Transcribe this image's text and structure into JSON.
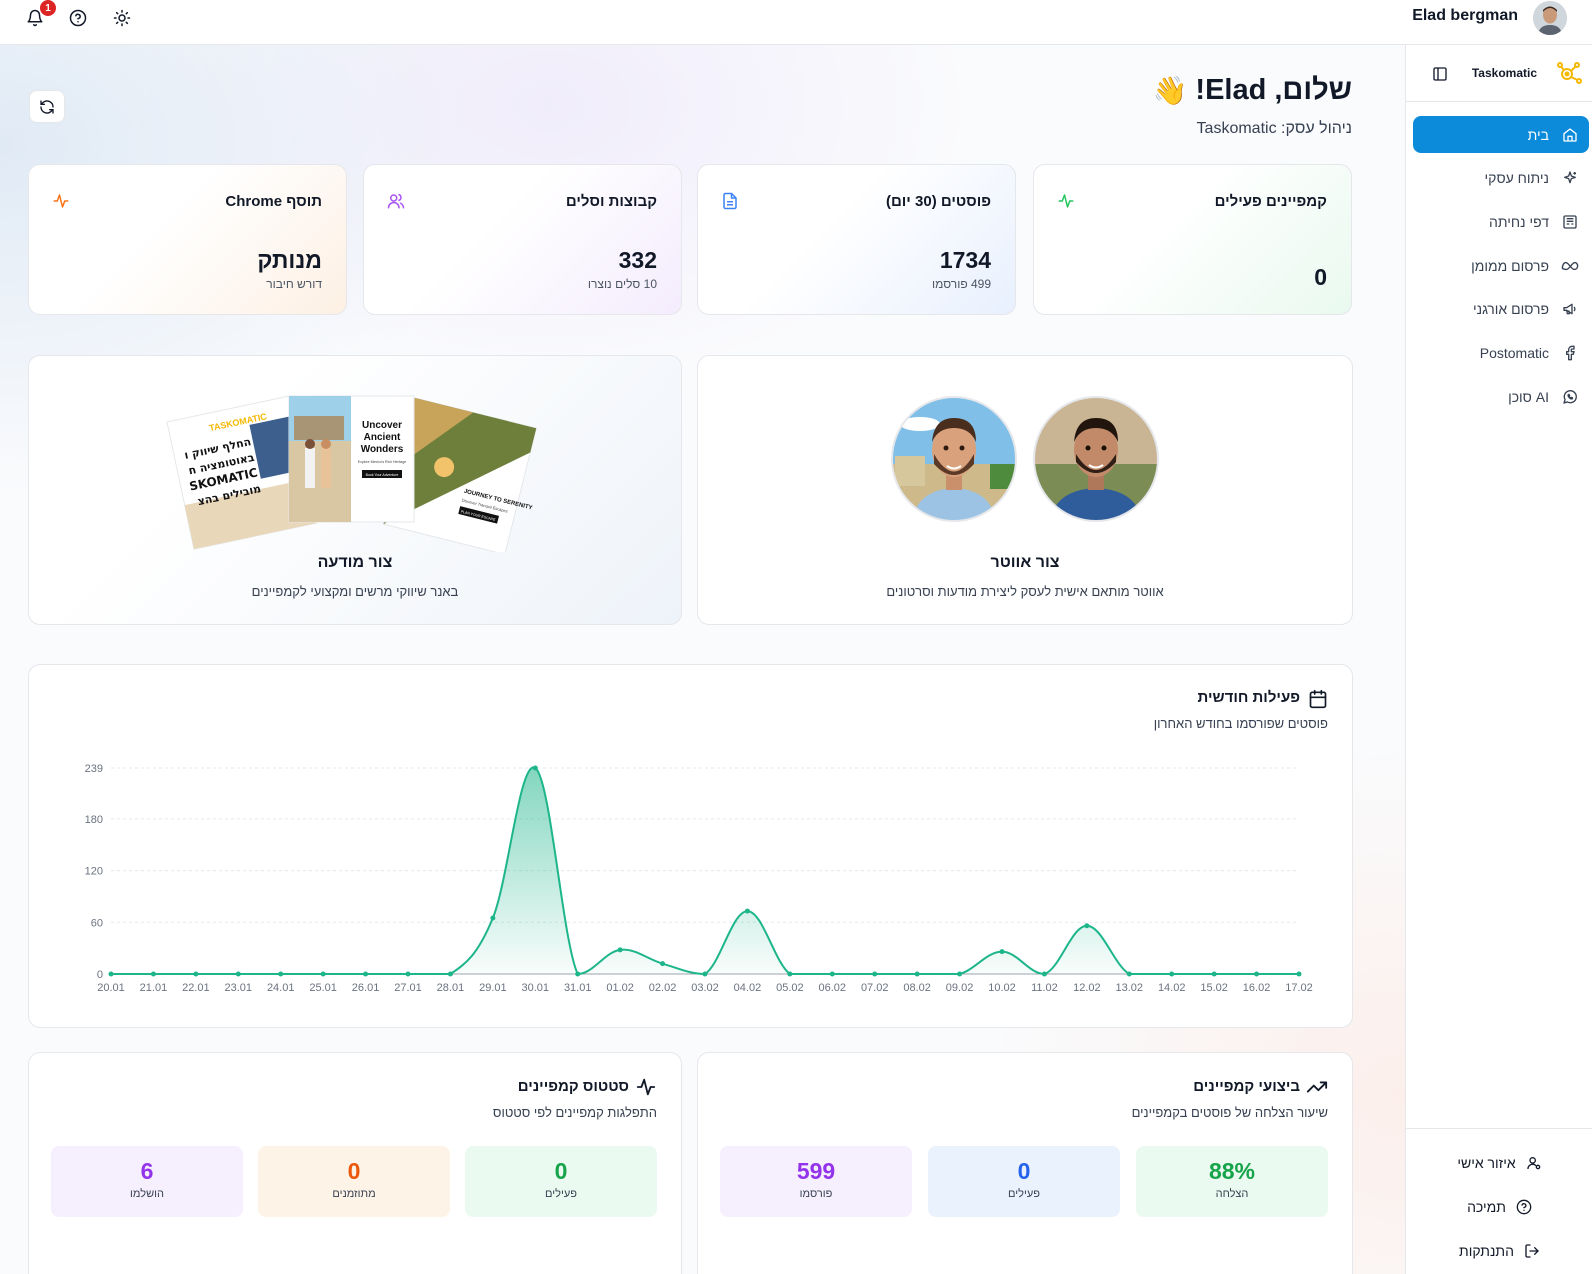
{
  "topbar": {
    "notification_count": "1",
    "user_name": "Elad bergman"
  },
  "sidebar": {
    "brand": "Taskomatic",
    "items": [
      {
        "label": "בית",
        "icon": "home-icon",
        "active": true
      },
      {
        "label": "ניתוח עסקי",
        "icon": "sparkles-icon"
      },
      {
        "label": "דפי נחיתה",
        "icon": "layout-icon"
      },
      {
        "label": "פרסום ממומן",
        "icon": "meta-icon"
      },
      {
        "label": "פרסום אורגני",
        "icon": "megaphone-icon"
      },
      {
        "label": "Postomatic",
        "icon": "facebook-icon"
      },
      {
        "label": "סוכן AI",
        "icon": "whatsapp-icon"
      }
    ],
    "footer": [
      {
        "label": "איזור אישי",
        "icon": "user-icon"
      },
      {
        "label": "תמיכה",
        "icon": "help-circle-icon"
      },
      {
        "label": "התנתקות",
        "icon": "logout-icon"
      }
    ]
  },
  "header": {
    "greeting": "שלום, Elad!",
    "wave": "👋",
    "subtitle": "ניהול עסק: Taskomatic"
  },
  "stats": [
    {
      "title": "קמפיינים פעילים",
      "value": "0",
      "sub": "",
      "icon": "activity-icon",
      "accent": "#22c55e"
    },
    {
      "title": "פוסטים (30 יום)",
      "value": "1734",
      "sub": "499 פורסמו",
      "icon": "file-text-icon",
      "accent": "#3b82f6"
    },
    {
      "title": "קבוצות וסלים",
      "value": "332",
      "sub": "10 סלים נוצרו",
      "icon": "users-icon",
      "accent": "#a855f7"
    },
    {
      "title": "תוסף Chrome",
      "value": "מנותק",
      "sub": "דורש חיבור",
      "icon": "activity-icon",
      "accent": "#f97316"
    }
  ],
  "features": {
    "avatar": {
      "title": "צור אווטר",
      "subtitle": "אווטר מותאם אישית לעסק ליצירת מודעות וסרטונים"
    },
    "ad": {
      "title": "צור מודעה",
      "subtitle": "באנר שיווקי מרשים ומקצועי לקמפיינים",
      "ad1_brand": "TASKOMATIC",
      "ad1_lines": [
        "החלף שיווק ו",
        "באוטומציה ח",
        "SKOMATIC",
        "מובילים בהצ"
      ],
      "ad2_lines": [
        "Uncover",
        "Ancient",
        "Wonders"
      ],
      "ad2_sub": "Explore Mexico's Rich Heritage",
      "ad2_btn": "Book Your Adventure",
      "ad3_title": "JOURNEY TO SERENITY",
      "ad3_sub": "Discover Tranquil Escapes",
      "ad3_btn": "PLAN YOUR ESCAPE"
    }
  },
  "chart": {
    "title": "פעילות חודשית",
    "subtitle": "פוסטים שפורסמו בחודש האחרון"
  },
  "chart_data": {
    "type": "area",
    "title": "פעילות חודשית",
    "x": [
      "20.01",
      "21.01",
      "22.01",
      "23.01",
      "24.01",
      "25.01",
      "26.01",
      "27.01",
      "28.01",
      "29.01",
      "30.01",
      "31.01",
      "01.02",
      "02.02",
      "03.02",
      "04.02",
      "05.02",
      "06.02",
      "07.02",
      "08.02",
      "09.02",
      "10.02",
      "11.02",
      "12.02",
      "13.02",
      "14.02",
      "15.02",
      "16.02",
      "17.02"
    ],
    "series": [
      {
        "values": [
          0,
          0,
          0,
          0,
          0,
          0,
          0,
          0,
          0,
          65,
          239,
          0,
          28,
          12,
          0,
          73,
          0,
          0,
          0,
          0,
          0,
          26,
          0,
          56,
          0,
          0,
          0,
          0,
          0
        ]
      }
    ],
    "yticks": [
      0,
      60,
      120,
      180,
      239
    ],
    "ylim": [
      0,
      239
    ],
    "grid": true,
    "color": "#1db58a"
  },
  "performance": {
    "title": "ביצועי קמפיינים",
    "subtitle": "שיעור הצלחה של פוסטים בקמפיינים",
    "tiles": [
      {
        "value": "88%",
        "label": "הצלחה",
        "color": "#16a34a",
        "bg": "#eafaf0"
      },
      {
        "value": "0",
        "label": "פעילים",
        "color": "#2563eb",
        "bg": "#eaf2fe"
      },
      {
        "value": "599",
        "label": "פורסמו",
        "color": "#9333ea",
        "bg": "#f5effe"
      }
    ]
  },
  "status": {
    "title": "סטטוס קמפיינים",
    "subtitle": "התפלגות קמפיינים לפי סטטוס",
    "tiles": [
      {
        "value": "0",
        "label": "פעילים",
        "color": "#16a34a",
        "bg": "#eafaf0"
      },
      {
        "value": "0",
        "label": "מתוזמנים",
        "color": "#ea580c",
        "bg": "#fdf3e6"
      },
      {
        "value": "6",
        "label": "הושלמו",
        "color": "#9333ea",
        "bg": "#f5effe"
      }
    ]
  }
}
